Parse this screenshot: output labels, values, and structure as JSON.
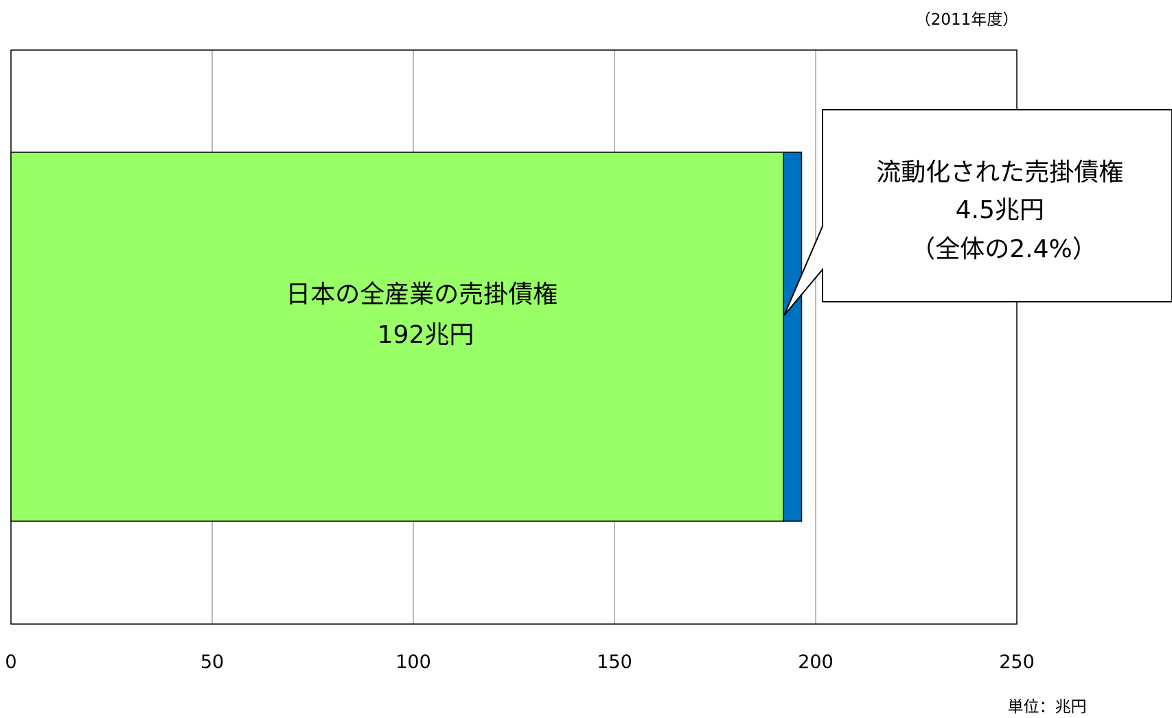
{
  "chart_data": {
    "type": "bar",
    "orientation": "horizontal",
    "stacked": true,
    "title": "",
    "period_note": "（2011年度）",
    "unit_note": "単位：兆円",
    "xlim": [
      0,
      250
    ],
    "x_ticks": [
      "0",
      "50",
      "100",
      "150",
      "200",
      "250"
    ],
    "grid": true,
    "legend": "none",
    "segments": [
      {
        "value": 192,
        "color": "#99ff66",
        "label_lines": [
          "日本の全産業の売掛債権",
          "192兆円"
        ]
      },
      {
        "value": 4.5,
        "color": "#0070c0",
        "label_lines": []
      }
    ],
    "annotations": [
      {
        "type": "callout",
        "target_segment": 1,
        "lines": [
          "流動化された売掛債権",
          "4.5兆円",
          "（全体の2.4%）"
        ]
      }
    ]
  }
}
